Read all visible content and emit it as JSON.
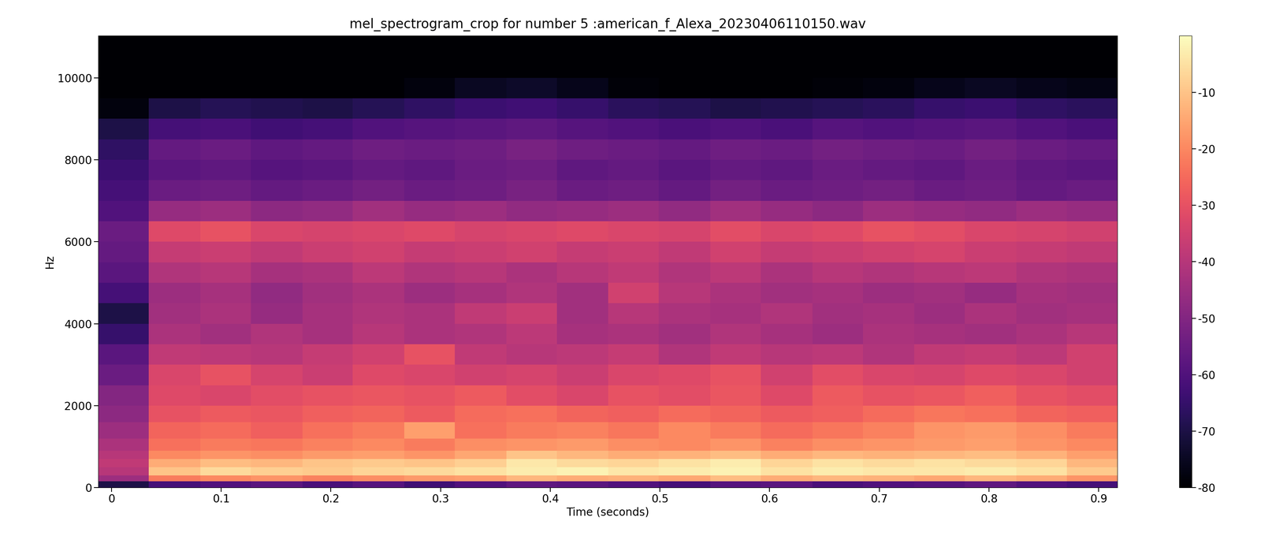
{
  "chart_data": {
    "type": "heatmap",
    "title": "mel_spectrogram_crop for number 5 :american_f_Alexa_20230406110150.wav",
    "x_label": "Time (seconds)",
    "y_label": "Hz",
    "xlim": [
      -0.012,
      0.917
    ],
    "xticks": [
      0,
      0.1,
      0.2,
      0.3,
      0.4,
      0.5,
      0.6,
      0.7,
      0.8,
      0.9
    ],
    "ylim": [
      0,
      11025
    ],
    "yticks": [
      0,
      2000,
      4000,
      6000,
      8000,
      10000
    ],
    "x_edges": [
      -0.012,
      0.034,
      0.081,
      0.127,
      0.174,
      0.22,
      0.267,
      0.313,
      0.36,
      0.406,
      0.453,
      0.499,
      0.546,
      0.592,
      0.639,
      0.685,
      0.732,
      0.778,
      0.825,
      0.871,
      0.917
    ],
    "y_edges": [
      0,
      150,
      300,
      500,
      700,
      900,
      1200,
      1600,
      2000,
      2500,
      3000,
      3500,
      4000,
      4500,
      5000,
      5500,
      6000,
      6500,
      7000,
      7500,
      8000,
      8500,
      9000,
      9500,
      10000,
      11025
    ],
    "cells": [
      [
        -70,
        -62,
        -60,
        -58,
        -61,
        -59,
        -63,
        -60,
        -57,
        -58,
        -60,
        -62,
        -59,
        -58,
        -61,
        -60,
        -59,
        -57,
        -60,
        -62
      ],
      [
        -45,
        -22,
        -20,
        -18,
        -21,
        -19,
        -17,
        -16,
        -12,
        -14,
        -13,
        -15,
        -11,
        -14,
        -12,
        -13,
        -15,
        -12,
        -14,
        -18
      ],
      [
        -40,
        -10,
        -6,
        -8,
        -9,
        -7,
        -6,
        -5,
        -3,
        -2,
        -4,
        -3,
        -2,
        -5,
        -3,
        -4,
        -4,
        -3,
        -5,
        -9
      ],
      [
        -38,
        -14,
        -11,
        -12,
        -10,
        -9,
        -10,
        -8,
        -4,
        -6,
        -7,
        -5,
        -3,
        -7,
        -5,
        -6,
        -5,
        -6,
        -7,
        -12
      ],
      [
        -40,
        -20,
        -18,
        -19,
        -17,
        -16,
        -18,
        -15,
        -10,
        -12,
        -14,
        -13,
        -11,
        -14,
        -12,
        -13,
        -12,
        -11,
        -13,
        -16
      ],
      [
        -42,
        -24,
        -22,
        -23,
        -21,
        -20,
        -22,
        -19,
        -18,
        -17,
        -19,
        -20,
        -18,
        -21,
        -19,
        -18,
        -17,
        -16,
        -18,
        -20
      ],
      [
        -45,
        -26,
        -25,
        -27,
        -24,
        -22,
        -16,
        -24,
        -22,
        -21,
        -23,
        -20,
        -22,
        -25,
        -23,
        -21,
        -18,
        -17,
        -19,
        -22
      ],
      [
        -48,
        -30,
        -28,
        -29,
        -27,
        -26,
        -28,
        -25,
        -24,
        -26,
        -27,
        -25,
        -26,
        -28,
        -27,
        -25,
        -23,
        -24,
        -26,
        -27
      ],
      [
        -50,
        -32,
        -33,
        -31,
        -30,
        -29,
        -30,
        -28,
        -31,
        -33,
        -30,
        -31,
        -29,
        -32,
        -28,
        -30,
        -29,
        -27,
        -30,
        -31
      ],
      [
        -55,
        -33,
        -30,
        -34,
        -36,
        -32,
        -33,
        -35,
        -34,
        -36,
        -33,
        -32,
        -30,
        -35,
        -31,
        -33,
        -34,
        -32,
        -33,
        -35
      ],
      [
        -58,
        -38,
        -39,
        -40,
        -37,
        -35,
        -30,
        -38,
        -40,
        -39,
        -37,
        -41,
        -38,
        -40,
        -39,
        -41,
        -38,
        -37,
        -39,
        -35
      ],
      [
        -65,
        -42,
        -44,
        -41,
        -43,
        -40,
        -42,
        -41,
        -39,
        -43,
        -42,
        -44,
        -41,
        -43,
        -45,
        -42,
        -43,
        -44,
        -42,
        -40
      ],
      [
        -70,
        -44,
        -42,
        -46,
        -43,
        -41,
        -42,
        -38,
        -36,
        -44,
        -40,
        -42,
        -43,
        -41,
        -44,
        -43,
        -45,
        -42,
        -44,
        -43
      ],
      [
        -62,
        -45,
        -43,
        -47,
        -44,
        -42,
        -45,
        -43,
        -41,
        -44,
        -35,
        -40,
        -42,
        -44,
        -43,
        -45,
        -44,
        -46,
        -43,
        -44
      ],
      [
        -58,
        -41,
        -40,
        -43,
        -42,
        -39,
        -41,
        -40,
        -42,
        -40,
        -38,
        -41,
        -39,
        -42,
        -40,
        -41,
        -40,
        -39,
        -41,
        -42
      ],
      [
        -56,
        -37,
        -36,
        -38,
        -36,
        -35,
        -37,
        -36,
        -35,
        -37,
        -36,
        -38,
        -35,
        -37,
        -36,
        -35,
        -34,
        -36,
        -37,
        -38
      ],
      [
        -55,
        -32,
        -30,
        -33,
        -34,
        -33,
        -32,
        -34,
        -33,
        -32,
        -33,
        -34,
        -31,
        -33,
        -32,
        -30,
        -31,
        -33,
        -34,
        -35
      ],
      [
        -60,
        -46,
        -45,
        -48,
        -47,
        -44,
        -46,
        -45,
        -47,
        -46,
        -45,
        -47,
        -44,
        -46,
        -48,
        -45,
        -46,
        -47,
        -45,
        -46
      ],
      [
        -62,
        -55,
        -54,
        -56,
        -55,
        -53,
        -55,
        -54,
        -52,
        -55,
        -54,
        -56,
        -53,
        -55,
        -54,
        -53,
        -55,
        -54,
        -56,
        -55
      ],
      [
        -64,
        -58,
        -57,
        -59,
        -58,
        -56,
        -57,
        -55,
        -54,
        -57,
        -56,
        -58,
        -56,
        -57,
        -55,
        -56,
        -57,
        -55,
        -57,
        -58
      ],
      [
        -66,
        -56,
        -55,
        -57,
        -56,
        -54,
        -55,
        -54,
        -52,
        -54,
        -55,
        -56,
        -54,
        -55,
        -53,
        -54,
        -55,
        -53,
        -55,
        -56
      ],
      [
        -70,
        -62,
        -61,
        -63,
        -62,
        -60,
        -59,
        -58,
        -57,
        -59,
        -60,
        -61,
        -60,
        -61,
        -59,
        -60,
        -59,
        -58,
        -60,
        -61
      ],
      [
        -78,
        -70,
        -68,
        -69,
        -70,
        -68,
        -66,
        -64,
        -63,
        -65,
        -67,
        -68,
        -70,
        -69,
        -68,
        -67,
        -65,
        -64,
        -66,
        -67
      ],
      [
        -80,
        -80,
        -80,
        -80,
        -80,
        -80,
        -78,
        -75,
        -74,
        -76,
        -79,
        -80,
        -80,
        -80,
        -79,
        -78,
        -76,
        -75,
        -76,
        -77
      ],
      [
        -80,
        -80,
        -80,
        -80,
        -80,
        -80,
        -80,
        -80,
        -80,
        -80,
        -80,
        -80,
        -80,
        -80,
        -80,
        -80,
        -80,
        -80,
        -80,
        -80
      ]
    ],
    "colorbar_range": [
      -80,
      0
    ],
    "colorbar_ticks": [
      -80,
      -70,
      -60,
      -50,
      -40,
      -30,
      -20,
      -10
    ]
  }
}
